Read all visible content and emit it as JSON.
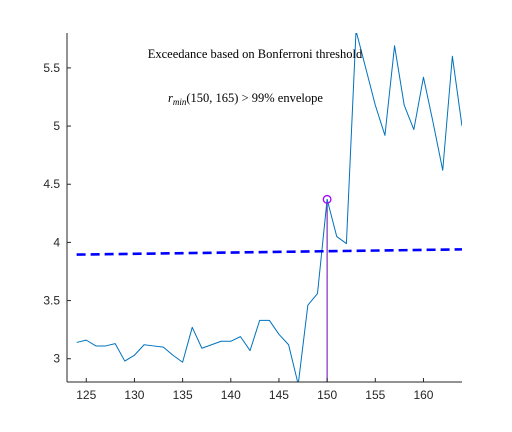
{
  "chart_data": {
    "type": "line",
    "title": "",
    "xlabel": "",
    "ylabel": "",
    "xlim": [
      123,
      164
    ],
    "ylim": [
      2.8,
      5.8
    ],
    "grid": false,
    "x_ticks": [
      125,
      130,
      135,
      140,
      145,
      150,
      155,
      160
    ],
    "y_ticks": [
      3,
      3.5,
      4,
      4.5,
      5,
      5.5
    ],
    "x_tick_labels": [
      "125",
      "130",
      "135",
      "140",
      "145",
      "150",
      "155",
      "160"
    ],
    "y_tick_labels": [
      "3",
      "3.5",
      "4",
      "4.5",
      "5",
      "5.5"
    ],
    "series": [
      {
        "kind": "line",
        "color": "#0072BD",
        "x": [
          124,
          125,
          126,
          127,
          128,
          129,
          130,
          131,
          132,
          133,
          134,
          135,
          136,
          137,
          138,
          139,
          140,
          141,
          142,
          143,
          144,
          145,
          146,
          147,
          148,
          149,
          150,
          151,
          152,
          153,
          154,
          155,
          156,
          157,
          158,
          159,
          160,
          161,
          162,
          163,
          164
        ],
        "y": [
          3.14,
          3.16,
          3.11,
          3.11,
          3.13,
          2.98,
          3.03,
          3.12,
          3.11,
          3.1,
          3.03,
          2.97,
          3.27,
          3.09,
          3.12,
          3.15,
          3.15,
          3.19,
          3.07,
          3.33,
          3.33,
          3.21,
          3.12,
          2.78,
          3.46,
          3.56,
          4.37,
          4.05,
          3.99,
          5.82,
          5.5,
          5.18,
          4.92,
          5.69,
          5.18,
          4.97,
          5.42,
          5.03,
          4.62,
          5.6,
          5.0
        ]
      },
      {
        "kind": "dashed",
        "color": "#0000FF",
        "x": [
          124,
          164
        ],
        "y": [
          3.895,
          3.94
        ]
      }
    ],
    "marker": {
      "x": 150,
      "y": 4.37,
      "color": "#A000FF",
      "shape": "circle"
    },
    "stem": {
      "x": 150,
      "y_from": 2.8,
      "y_to": 4.37,
      "color": "#7E2FBE"
    },
    "annotations": {
      "line1": "Exceedance based on Bonferroni threshold",
      "line2_r": "r",
      "line2_sub": "min",
      "line2_rest": "(150, 165) > 99% envelope"
    }
  }
}
